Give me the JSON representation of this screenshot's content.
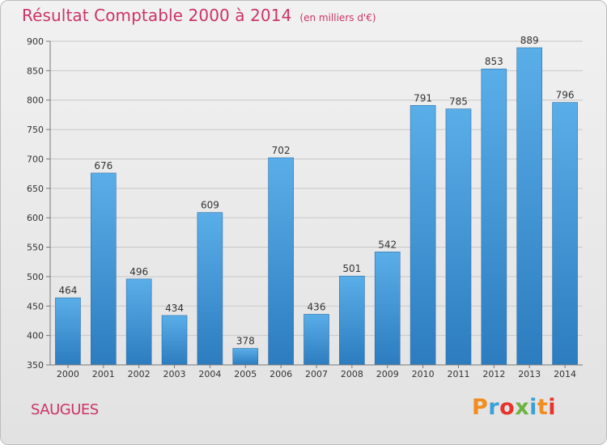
{
  "chart_data": {
    "type": "bar",
    "title": "Résultat Comptable 2000 à 2014",
    "subtitle": "(en milliers d'€)",
    "xlabel": "",
    "ylabel": "",
    "categories": [
      "2000",
      "2001",
      "2002",
      "2003",
      "2004",
      "2005",
      "2006",
      "2007",
      "2008",
      "2009",
      "2010",
      "2011",
      "2012",
      "2013",
      "2014"
    ],
    "values": [
      464,
      676,
      496,
      434,
      609,
      378,
      702,
      436,
      501,
      542,
      791,
      785,
      853,
      889,
      796
    ],
    "ylim": [
      350,
      900
    ],
    "yticks": [
      350,
      400,
      450,
      500,
      550,
      600,
      650,
      700,
      750,
      800,
      850,
      900
    ],
    "grid": true,
    "bar_color": "#3d8fd6"
  },
  "footer": {
    "location": "SAUGUES",
    "logo_text": "Proxiti",
    "logo_colors": [
      "#f28c1e",
      "#3aa0d8",
      "#e8332a",
      "#6db33f",
      "#3aa0d8",
      "#f28c1e",
      "#e8332a"
    ]
  }
}
